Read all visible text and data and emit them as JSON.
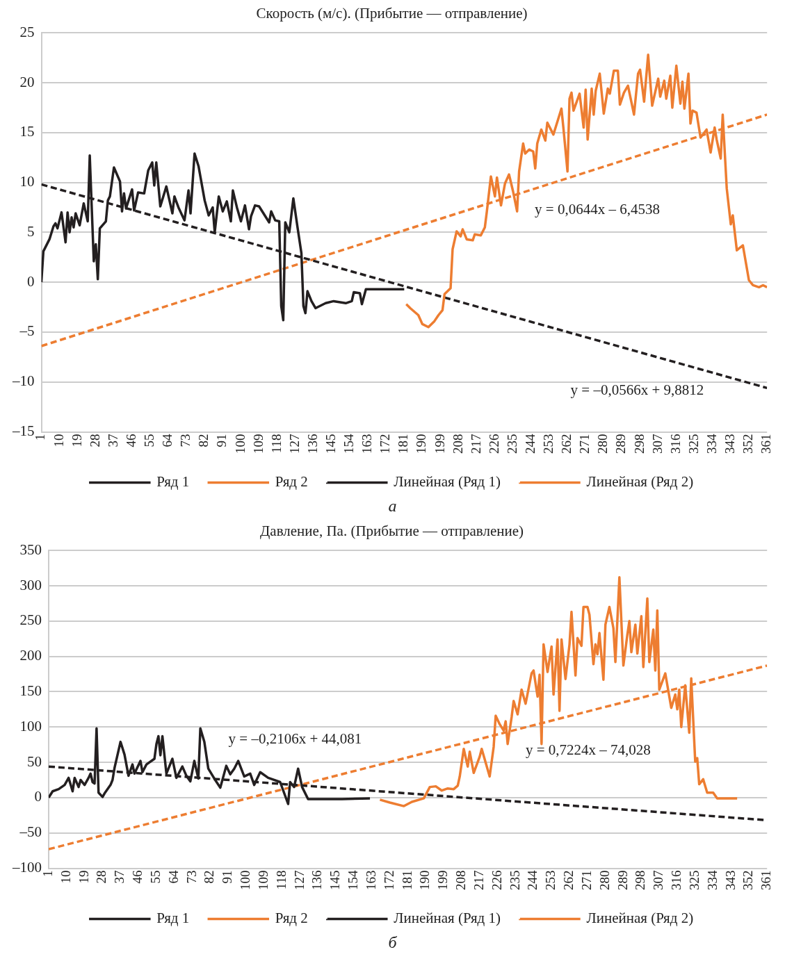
{
  "chart_data": [
    {
      "type": "line",
      "title": "Скорость (м/с). (Прибытие — отправление)",
      "xlim": [
        1,
        361
      ],
      "xticks": [
        1,
        10,
        19,
        28,
        37,
        46,
        55,
        64,
        73,
        82,
        91,
        100,
        109,
        118,
        127,
        136,
        145,
        154,
        163,
        172,
        181,
        190,
        199,
        208,
        217,
        226,
        235,
        244,
        253,
        262,
        271,
        280,
        289,
        298,
        307,
        316,
        325,
        334,
        343,
        352,
        361
      ],
      "ylim": [
        -15,
        25
      ],
      "yticks": [
        {
          "value": -15,
          "label": "–15"
        },
        {
          "value": -10,
          "label": "–10"
        },
        {
          "value": -5,
          "label": "–5"
        },
        0,
        5,
        10,
        15,
        20,
        25
      ],
      "grid": "y",
      "legend": "bottom",
      "marker": "none",
      "series": [
        {
          "name": "Ряд 1",
          "color": "#231f20",
          "line_style": "solid",
          "x": [
            1,
            2,
            4,
            5,
            7,
            8,
            9,
            11,
            13,
            14,
            15,
            16,
            17,
            18,
            20,
            22,
            24,
            25,
            27,
            28,
            29,
            30,
            33,
            34,
            35,
            37,
            40,
            41,
            42,
            43,
            46,
            47,
            49,
            52,
            54,
            56,
            57,
            58,
            60,
            63,
            66,
            67,
            69,
            72,
            74,
            75,
            77,
            79,
            82,
            84,
            86,
            87,
            89,
            91,
            93,
            95,
            96,
            98,
            100,
            102,
            104,
            105,
            107,
            109,
            114,
            115,
            117,
            119,
            120,
            121,
            122,
            124,
            126,
            128,
            130,
            131,
            132,
            133,
            135,
            137,
            142,
            146,
            152,
            155,
            156,
            159,
            160,
            162,
            181
          ],
          "values": [
            0,
            3.1,
            3.9,
            4.3,
            5.6,
            5.9,
            5.4,
            7.0,
            4.0,
            7.0,
            5.0,
            6.5,
            5.5,
            6.9,
            5.7,
            7.9,
            6.1,
            12.7,
            2.1,
            3.8,
            0.3,
            5.4,
            6.1,
            8.2,
            8.6,
            11.5,
            10.1,
            7.1,
            8.9,
            7.4,
            9.3,
            7.2,
            9.0,
            8.9,
            11.2,
            12.0,
            9.7,
            12.0,
            7.6,
            9.6,
            6.9,
            8.6,
            7.5,
            6.2,
            9.2,
            6.9,
            12.9,
            11.6,
            8.2,
            6.7,
            7.5,
            5.0,
            8.6,
            7.1,
            8.1,
            6.1,
            9.2,
            7.5,
            6.1,
            7.7,
            5.3,
            6.6,
            7.7,
            7.6,
            6.0,
            7.1,
            6.2,
            6.1,
            -2.4,
            -3.8,
            6.0,
            5.0,
            8.4,
            5.6,
            2.9,
            -2.4,
            -3.1,
            -0.9,
            -1.9,
            -2.6,
            -2.1,
            -1.9,
            -2.1,
            -1.9,
            -1.0,
            -1.1,
            -2.2,
            -0.7,
            -0.7
          ]
        },
        {
          "name": "Ряд 2",
          "color": "#ed7d31",
          "line_style": "solid",
          "x": [
            182,
            184,
            188,
            190,
            193,
            196,
            198,
            200,
            201,
            204,
            205,
            207,
            209,
            210,
            212,
            215,
            216,
            219,
            221,
            222,
            224,
            226,
            227,
            229,
            231,
            233,
            235,
            237,
            238,
            240,
            241,
            243,
            245,
            246,
            247,
            249,
            251,
            252,
            255,
            259,
            260,
            262,
            263,
            264,
            265,
            268,
            270,
            271,
            272,
            274,
            275,
            276,
            278,
            280,
            282,
            283,
            285,
            287,
            288,
            290,
            292,
            295,
            297,
            298,
            300,
            302,
            304,
            307,
            308,
            310,
            311,
            313,
            314,
            316,
            318,
            319,
            320,
            322,
            323,
            324,
            326,
            328,
            331,
            333,
            335,
            336,
            338,
            339,
            341,
            343,
            344,
            346,
            349,
            352,
            354,
            357,
            359,
            361
          ],
          "values": [
            -2.2,
            -2.6,
            -3.3,
            -4.2,
            -4.5,
            -3.9,
            -3.3,
            -2.8,
            -1.2,
            -0.6,
            3.3,
            5.1,
            4.6,
            5.3,
            4.3,
            4.2,
            4.8,
            4.7,
            5.5,
            7.1,
            10.6,
            8.6,
            10.5,
            7.7,
            9.9,
            10.8,
            9.1,
            7.1,
            11.1,
            13.9,
            12.9,
            13.3,
            13.1,
            11.4,
            13.9,
            15.3,
            14.2,
            16.0,
            14.8,
            17.4,
            15.4,
            11.1,
            18.4,
            19.0,
            17.2,
            18.9,
            15.5,
            19.3,
            14.3,
            19.4,
            16.8,
            19.2,
            20.9,
            16.9,
            19.4,
            18.9,
            21.2,
            21.2,
            17.8,
            19.0,
            19.7,
            16.8,
            20.9,
            21.3,
            18.1,
            22.8,
            17.7,
            20.4,
            18.6,
            20.2,
            18.4,
            20.7,
            17.5,
            21.7,
            17.9,
            20.1,
            17.4,
            20.9,
            15.9,
            17.2,
            17.0,
            14.5,
            15.3,
            13.0,
            15.5,
            14.3,
            12.4,
            16.8,
            9.4,
            5.8,
            6.7,
            3.2,
            3.7,
            0.2,
            -0.3,
            -0.5,
            -0.3,
            -0.5
          ]
        },
        {
          "name": "Линейная (Ряд 1)",
          "color": "#231f20",
          "line_style": "dashed",
          "x": [
            1,
            361
          ],
          "values": [
            9.8,
            -10.6
          ]
        },
        {
          "name": "Линейная (Ряд 2)",
          "color": "#ed7d31",
          "line_style": "dashed",
          "x": [
            1,
            361
          ],
          "values": [
            -6.4,
            16.8
          ]
        }
      ],
      "annotations": [
        "y = 0,0644x – 6,4538",
        "y = –0,0566x + 9,8812",
        "а"
      ]
    },
    {
      "type": "line",
      "title": "Давление, Па. (Прибытие — отправление)",
      "xlim": [
        1,
        361
      ],
      "xticks": [
        1,
        10,
        19,
        28,
        37,
        46,
        55,
        64,
        73,
        82,
        91,
        100,
        109,
        118,
        127,
        136,
        145,
        154,
        163,
        172,
        181,
        190,
        199,
        208,
        217,
        226,
        235,
        244,
        253,
        262,
        271,
        280,
        289,
        298,
        307,
        316,
        325,
        334,
        343,
        352,
        361
      ],
      "ylim": [
        -100,
        350
      ],
      "yticks": [
        {
          "value": -100,
          "label": "–100"
        },
        {
          "value": -50,
          "label": "–50"
        },
        0,
        50,
        100,
        150,
        200,
        250,
        300,
        350
      ],
      "grid": "y",
      "legend": "bottom",
      "marker": "none",
      "series": [
        {
          "name": "Ряд 1",
          "color": "#231f20",
          "line_style": "solid",
          "x": [
            1,
            3,
            6,
            9,
            11,
            13,
            14,
            16,
            17,
            19,
            21,
            22,
            23,
            24,
            25,
            26,
            28,
            29,
            32,
            33,
            34,
            37,
            39,
            41,
            43,
            44,
            47,
            48,
            50,
            54,
            55,
            56,
            57,
            58,
            60,
            63,
            65,
            68,
            70,
            72,
            74,
            76,
            77,
            79,
            81,
            84,
            87,
            90,
            92,
            94,
            96,
            99,
            102,
            104,
            107,
            111,
            114,
            117,
            121,
            122,
            124,
            126,
            128,
            131,
            134,
            148,
            162
          ],
          "values": [
            0,
            9,
            12,
            18,
            28,
            9,
            28,
            15,
            25,
            18,
            28,
            34,
            22,
            20,
            98,
            7,
            1,
            6,
            18,
            25,
            42,
            79,
            61,
            31,
            47,
            34,
            52,
            36,
            47,
            55,
            76,
            87,
            60,
            87,
            34,
            55,
            28,
            44,
            31,
            23,
            52,
            27,
            98,
            79,
            41,
            27,
            14,
            45,
            33,
            41,
            52,
            30,
            34,
            18,
            36,
            28,
            25,
            22,
            -9,
            22,
            15,
            41,
            15,
            -2,
            -2,
            -2,
            -1
          ]
        },
        {
          "name": "Ряд 2",
          "color": "#ed7d31",
          "line_style": "solid",
          "x": [
            167,
            172,
            179,
            183,
            189,
            192,
            195,
            198,
            201,
            204,
            206,
            207,
            209,
            211,
            212,
            214,
            217,
            218,
            222,
            224,
            225,
            227,
            229,
            230,
            231,
            233,
            234,
            236,
            238,
            240,
            243,
            244,
            246,
            247,
            248,
            249,
            251,
            253,
            254,
            256,
            257,
            258,
            260,
            262,
            263,
            265,
            266,
            268,
            269,
            271,
            272,
            274,
            275,
            276,
            277,
            279,
            280,
            282,
            284,
            285,
            287,
            289,
            291,
            292,
            293,
            295,
            296,
            298,
            299,
            301,
            302,
            304,
            305,
            306,
            307,
            310,
            313,
            315,
            316,
            317,
            318,
            320,
            322,
            323,
            325,
            326,
            327,
            329,
            331,
            334,
            336,
            346
          ],
          "values": [
            -3,
            -7,
            -12,
            -6,
            -1,
            15,
            16,
            10,
            13,
            12,
            17,
            30,
            69,
            44,
            65,
            35,
            58,
            69,
            30,
            72,
            116,
            104,
            95,
            108,
            76,
            114,
            137,
            118,
            153,
            133,
            176,
            180,
            143,
            174,
            76,
            217,
            178,
            214,
            146,
            224,
            123,
            224,
            168,
            217,
            263,
            173,
            226,
            215,
            270,
            270,
            259,
            189,
            217,
            203,
            233,
            167,
            245,
            270,
            240,
            192,
            312,
            187,
            231,
            250,
            206,
            245,
            204,
            257,
            185,
            282,
            192,
            238,
            180,
            265,
            153,
            176,
            127,
            146,
            125,
            153,
            100,
            159,
            92,
            169,
            51,
            56,
            19,
            26,
            7,
            7,
            -1,
            -1
          ]
        },
        {
          "name": "Линейная (Ряд 1)",
          "color": "#231f20",
          "line_style": "dashed",
          "x": [
            1,
            361
          ],
          "values": [
            44,
            -32
          ]
        },
        {
          "name": "Линейная (Ряд 2)",
          "color": "#ed7d31",
          "line_style": "dashed",
          "x": [
            1,
            361
          ],
          "values": [
            -73,
            187
          ]
        }
      ],
      "annotations": [
        "y = –0,2106x + 44,081",
        "y = 0,7224x – 74,028",
        "б"
      ]
    }
  ]
}
